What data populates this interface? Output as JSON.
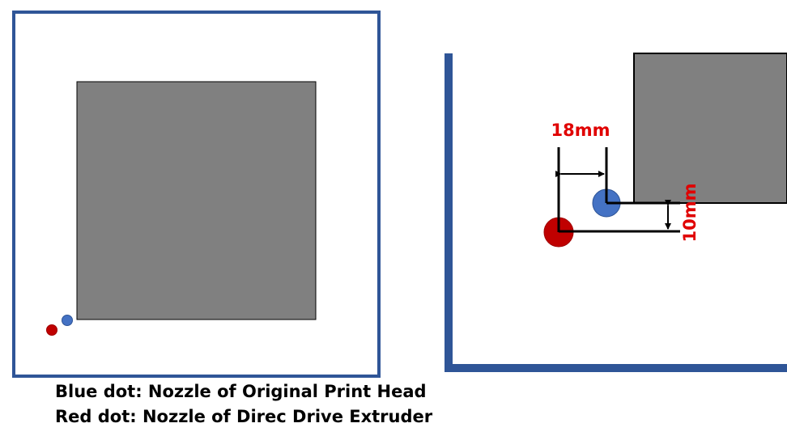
{
  "legend": {
    "blue_dot": "Blue dot: Nozzle of Original Print Head",
    "red_dot": "Red dot: Nozzle of Direc Drive Extruder"
  },
  "dimensions": {
    "horizontal_offset": "18mm",
    "vertical_offset": "10mm"
  },
  "colors": {
    "frame_border": "#2f5597",
    "print_area": "#808080",
    "blue_dot": "#4472c4",
    "red_dot": "#c00000",
    "dimension_text": "#e00000",
    "dimension_lines": "#000000"
  }
}
